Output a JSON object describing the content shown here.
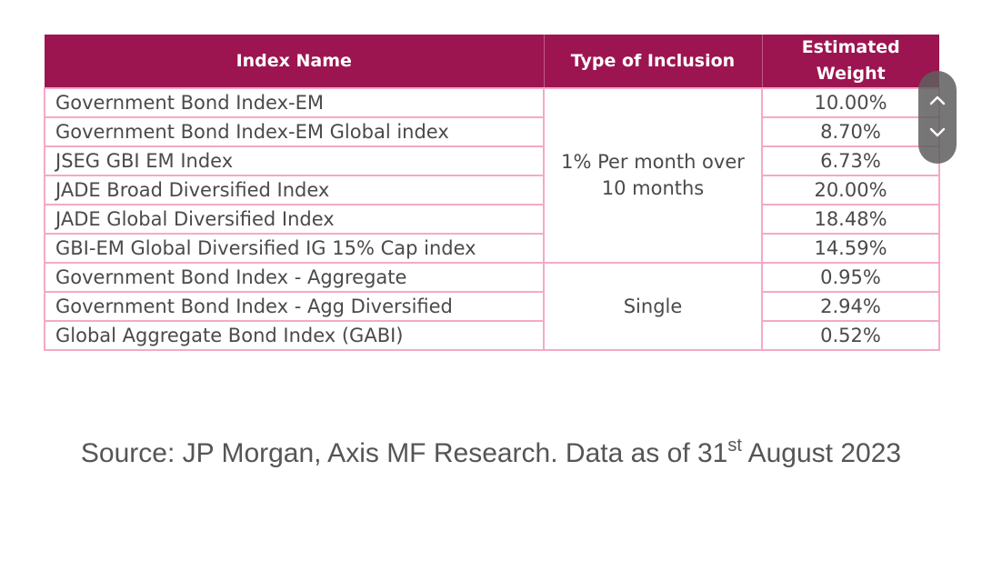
{
  "table": {
    "headers": {
      "index_name": "Index Name",
      "type_of_inclusion": "Type of Inclusion",
      "estimated_weight": "Estimated Weight"
    },
    "rows": [
      {
        "name": "Government Bond Index-EM",
        "weight": "10.00%"
      },
      {
        "name": "Government Bond Index-EM Global index",
        "weight": "8.70%"
      },
      {
        "name": "JSEG GBI EM Index",
        "weight": "6.73%"
      },
      {
        "name": "JADE Broad Diversified Index",
        "weight": "20.00%"
      },
      {
        "name": "JADE Global Diversified Index",
        "weight": "18.48%"
      },
      {
        "name": "GBI-EM Global Diversified IG 15% Cap index",
        "weight": "14.59%"
      },
      {
        "name": "Government Bond Index - Aggregate",
        "weight": "0.95%"
      },
      {
        "name": "Government Bond Index - Agg Diversified",
        "weight": "2.94%"
      },
      {
        "name": "Global Aggregate Bond Index (GABI)",
        "weight": "0.52%"
      }
    ],
    "inclusion_groups": [
      {
        "label": "1% Per month over 10 months"
      },
      {
        "label": "Single"
      }
    ]
  },
  "source": {
    "text_before": "Source: JP Morgan, Axis MF Research. Data as of 31",
    "superscript": "st",
    "text_after": " August 2023"
  },
  "scroll_controls": {
    "up_icon": "chevron-up-icon",
    "down_icon": "chevron-down-icon"
  },
  "colors": {
    "header_bg": "#9c1550",
    "border": "#f4a9c8",
    "text": "#4a4a4a"
  }
}
